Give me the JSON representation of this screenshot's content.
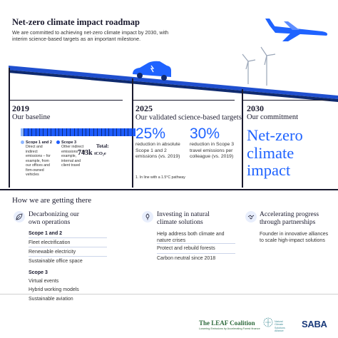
{
  "header": {
    "title": "Net-zero climate impact roadmap",
    "intro": "We are committed to achieving net-zero climate impact by 2030, with interim science-based targets as an important milestone."
  },
  "milestones": {
    "baseline": {
      "year": "2019",
      "label": "Our baseline",
      "scope12_head": "Scope 1 and 2",
      "scope12_desc": "Direct and indirect emissions – for example, from our offices and firm-owned vehicles",
      "scope3_head": "Scope 3",
      "scope3_desc": "Other indirect emissions – for example, internal and client travel",
      "total_label": "Total:",
      "total_value": "743k",
      "total_unit": "tCO₂e",
      "scope12_color": "#8fb7ff",
      "scope3_color": "#1d5cff"
    },
    "targets": {
      "year": "2025",
      "label": "Our validated science-based targets",
      "footnote_mark": "1",
      "target1_pct": "25%",
      "target1_desc": "reduction in absolute Scope 1 and 2 emissions (vs. 2019)",
      "target2_pct": "30%",
      "target2_desc": "reduction in Scope 3 travel emissions per colleague (vs. 2019)",
      "footnote": "1.   In line with a 1.5°C pathway"
    },
    "commitment": {
      "year": "2030",
      "label": "Our commitment",
      "headline_l1": "Net-zero",
      "headline_l2": "climate",
      "headline_l3": "impact"
    }
  },
  "how": {
    "title": "How we are getting there",
    "col1": {
      "icon": "leaf-reduction-icon",
      "head_l1": "Decarbonizing our",
      "head_l2": "own operations",
      "scope12_head": "Scope 1 and 2",
      "scope12_items": [
        "Fleet electrification",
        "Renewable electricity",
        "Sustainable office space"
      ],
      "scope3_head": "Scope 3",
      "scope3_items": [
        "Virtual events",
        "Hybrid working models",
        "Sustainable aviation"
      ]
    },
    "col2": {
      "icon": "leaf-hand-icon",
      "head_l1": "Investing in natural",
      "head_l2": "climate solutions",
      "items": [
        "Help address both climate and nature crises",
        "Protect and rebuild forests",
        "Carbon neutral since 2018"
      ]
    },
    "col3": {
      "icon": "handshake-icon",
      "head_l1": "Accelerating progress",
      "head_l2": "through partnerships",
      "items": [
        "Founder in innovative alliances to scale high-impact solutions"
      ]
    }
  },
  "logos": {
    "leaf": "The LEAF Coalition",
    "leaf_tag": "Lowering Emissions by Accelerating Forest finance",
    "ncs_l1": "Natural",
    "ncs_l2": "Climate",
    "ncs_l3": "Solutions",
    "ncs_l4": "Alliance",
    "saba": "SABA"
  }
}
